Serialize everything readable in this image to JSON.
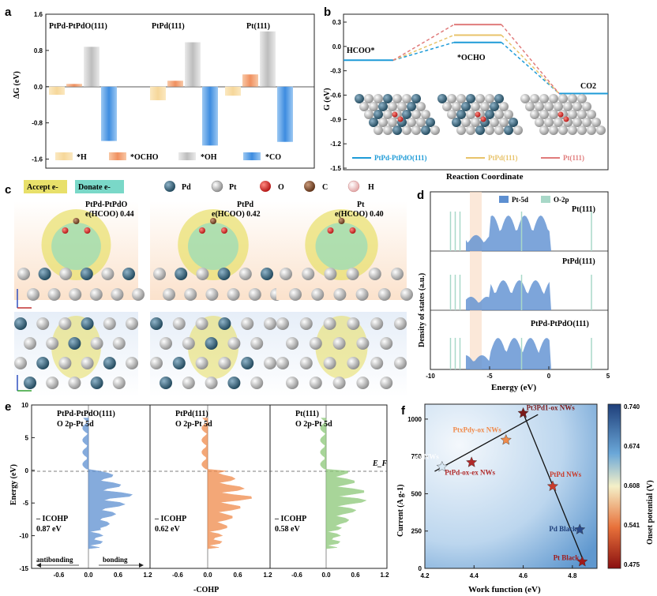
{
  "panels": {
    "a": "a",
    "b": "b",
    "c": "c",
    "d": "d",
    "e": "e",
    "f": "f"
  },
  "colors": {
    "H": "#f6d79a",
    "OCHO": "#f4a36f",
    "OH": "#c9c9c9",
    "CO": "#4a95e0",
    "pd_atom": "#35637a",
    "pt_atom": "#a9a9a9",
    "o_atom": "#d42a1d",
    "c_atom": "#7a4a2e",
    "h_atom": "#f1c3c3",
    "ptpd_ptpdo": "#1e9bd7",
    "ptpd": "#e8c36a",
    "pt": "#e07b7b",
    "pt5d": "#5d8fd1",
    "o2p": "#a8d8c8",
    "acceptor": "#e8e06a",
    "donor": "#7ad8c8"
  },
  "chart_data": [
    {
      "id": "a",
      "type": "bar",
      "ylabel": "ΔG (eV)",
      "ylim": [
        -1.8,
        1.6
      ],
      "yticks": [
        "1.6",
        "0.8",
        "0.0",
        "-0.8",
        "-1.6"
      ],
      "groups": [
        "PtPd-PtPdO(111)",
        "PtPd(111)",
        "Pt(111)"
      ],
      "series": [
        {
          "name": "*H",
          "values": [
            -0.18,
            -0.3,
            -0.2
          ]
        },
        {
          "name": "*OCHO",
          "values": [
            0.06,
            0.13,
            0.27
          ]
        },
        {
          "name": "*OH",
          "values": [
            0.88,
            0.98,
            1.22
          ]
        },
        {
          "name": "*CO",
          "values": [
            -1.2,
            -1.3,
            -1.22
          ]
        }
      ]
    },
    {
      "id": "b",
      "type": "line",
      "title": "",
      "xlabel": "Reaction Coordinate",
      "ylabel": "G (eV)",
      "ylim": [
        -1.5,
        0.3
      ],
      "yticks": [
        "0.3",
        "0.0",
        "-0.3",
        "-0.6",
        "-0.9",
        "-1.2",
        "-1.5"
      ],
      "annotations": [
        "HCOO*",
        "*OCHO",
        "CO2"
      ],
      "series": [
        {
          "name": "PtPd-PtPdO(111)",
          "values": [
            -0.17,
            0.05,
            -0.58
          ]
        },
        {
          "name": "PtPd(111)",
          "values": [
            -0.17,
            0.14,
            -0.58
          ]
        },
        {
          "name": "Pt(111)",
          "values": [
            -0.17,
            0.27,
            -0.58
          ]
        }
      ]
    },
    {
      "id": "d",
      "type": "area",
      "xlabel": "Energy (eV)",
      "ylabel": "Density of states (a.u.)",
      "xlim": [
        -10,
        5
      ],
      "xticks": [
        "-10",
        "-5",
        "0",
        "5"
      ],
      "legend": [
        "Pt-5d",
        "O-2p"
      ],
      "subplots": [
        "Pt(111)",
        "PtPd(111)",
        "PtPd-PtPdO(111)"
      ]
    },
    {
      "id": "e",
      "type": "area",
      "ylabel": "Energy (eV)",
      "xlabel": "-COHP",
      "ylim": [
        -15,
        10
      ],
      "yticks": [
        "10",
        "5",
        "0",
        "-5",
        "-10",
        "-15"
      ],
      "fermi_label": "E_F",
      "subplots": [
        {
          "title1": "PtPd-PtPdO(111)",
          "title2": "O 2p-Pt 5d",
          "icohp_label": "– ICOHP",
          "icohp": "0.87 eV",
          "xticks": [
            "-1.2",
            "-0.6",
            "0.0",
            "0.6",
            "1.2"
          ]
        },
        {
          "title1": "PtPd(111)",
          "title2": "O 2p-Pt 5d",
          "icohp_label": "– ICOHP",
          "icohp": "0.62 eV",
          "xticks": [
            "-0.6",
            "0.0",
            "0.6",
            "1.2"
          ]
        },
        {
          "title1": "Pt(111)",
          "title2": "O 2p-Pt 5d",
          "icohp_label": "– ICOHP",
          "icohp": "0.58 eV",
          "xticks": [
            "-1.2",
            "-0.6",
            "0.0",
            "0.6",
            "1.2"
          ]
        }
      ],
      "antibonding": "antibonding",
      "bonding": "bonding"
    },
    {
      "id": "f",
      "type": "scatter",
      "xlabel": "Work function (eV)",
      "ylabel": "Current (A g-1)",
      "xlim": [
        4.2,
        4.9
      ],
      "ylim": [
        0,
        1100
      ],
      "xticks": [
        "4.2",
        "4.4",
        "4.6",
        "4.8"
      ],
      "yticks": [
        "0",
        "250",
        "500",
        "750",
        "1000"
      ],
      "colorbar": {
        "label": "Onset potential (V)",
        "ticks": [
          "0.740",
          "0.674",
          "0.608",
          "0.541",
          "0.475"
        ]
      },
      "points": [
        {
          "name": "Pt3Pd1-ox NWs",
          "x": 4.6,
          "y": 1040,
          "color": "#7a1a1a"
        },
        {
          "name": "PtxPdy-ox NWs",
          "x": 4.53,
          "y": 860,
          "color": "#f08a4a"
        },
        {
          "name": "PtxPdy-ox NWs",
          "x": 4.27,
          "y": 680,
          "color": "#d8e8f4"
        },
        {
          "name": "PtPd-ox-ex NWs",
          "x": 4.39,
          "y": 710,
          "color": "#b02a2a"
        },
        {
          "name": "PtPd NWs",
          "x": 4.72,
          "y": 550,
          "color": "#c83a2a"
        },
        {
          "name": "Pd Black",
          "x": 4.83,
          "y": 260,
          "color": "#2a4a8a"
        },
        {
          "name": "Pt Black",
          "x": 4.84,
          "y": 45,
          "color": "#a01a1a"
        }
      ]
    }
  ],
  "panel_a": {
    "groups": [
      "PtPd-PtPdO(111)",
      "PtPd(111)",
      "Pt(111)"
    ],
    "legend": [
      "*H",
      "*OCHO",
      "*OH",
      "*CO"
    ],
    "ylabel": "ΔG (eV)",
    "yticks": [
      "1.6",
      "0.8",
      "0.0",
      "-0.8",
      "-1.6"
    ]
  },
  "panel_b": {
    "annot_hcoo": "HCOO*",
    "annot_ocho": "*OCHO",
    "annot_co2": "CO2",
    "legend": [
      "PtPd-PtPdO(111)",
      "PtPd(111)",
      "Pt(111)"
    ],
    "xlabel": "Reaction Coordinate",
    "ylabel": "G (eV)"
  },
  "panel_c": {
    "legend_accept": "Accept e-",
    "legend_donate": "Donate e-",
    "atoms": [
      "Pd",
      "Pt",
      "O",
      "C",
      "H"
    ],
    "labels": [
      {
        "l1": "PtPd-PtPdO",
        "l2": "e(HCOO) 0.44"
      },
      {
        "l1": "PtPd",
        "l2": "e(HCOO) 0.42"
      },
      {
        "l1": "Pt",
        "l2": "e(HCOO) 0.40"
      }
    ]
  },
  "panel_d": {
    "legend_pt5d": "Pt-5d",
    "legend_o2p": "O-2p",
    "sub1": "Pt(111)",
    "sub2": "PtPd(111)",
    "sub3": "PtPd-PtPdO(111)",
    "xlabel": "Energy (eV)",
    "ylabel": "Density of states (a.u.)"
  },
  "panel_f": {
    "labels": [
      "Pt3Pd1-ox NWs",
      "PtxPdy-ox NWs",
      "PtxPdy-ox NWs",
      "PtPd-ox-ex NWs",
      "PtPd NWs",
      "Pd Black",
      "Pt Black"
    ],
    "xlabel": "Work function (eV)",
    "ylabel": "Current (A g-1)",
    "cbar_label": "Onset potential (V)"
  }
}
